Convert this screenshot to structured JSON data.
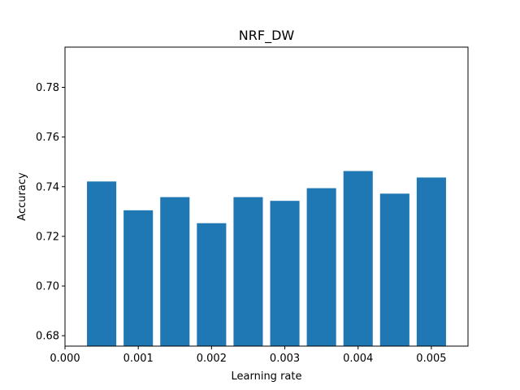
{
  "chart_data": {
    "type": "bar",
    "title": "NRF_DW",
    "xlabel": "Learning rate",
    "ylabel": "Accuracy",
    "x": [
      0.0005,
      0.001,
      0.0015,
      0.002,
      0.0025,
      0.003,
      0.0035,
      0.004,
      0.0045,
      0.005
    ],
    "values": [
      0.7421,
      0.7305,
      0.7358,
      0.7253,
      0.7358,
      0.7343,
      0.7394,
      0.7463,
      0.7372,
      0.7437
    ],
    "bar_width": 0.0004,
    "xlim": [
      0.0,
      0.0055
    ],
    "ylim": [
      0.6758,
      0.7962
    ],
    "xticks": [
      0.0,
      0.001,
      0.002,
      0.003,
      0.004,
      0.005
    ],
    "xtick_labels": [
      "0.000",
      "0.001",
      "0.002",
      "0.003",
      "0.004",
      "0.005"
    ],
    "yticks": [
      0.68,
      0.7,
      0.72,
      0.74,
      0.76,
      0.78
    ],
    "ytick_labels": [
      "0.68",
      "0.70",
      "0.72",
      "0.74",
      "0.76",
      "0.78"
    ],
    "bar_color": "#1f77b4",
    "grid": false,
    "legend": "none"
  }
}
